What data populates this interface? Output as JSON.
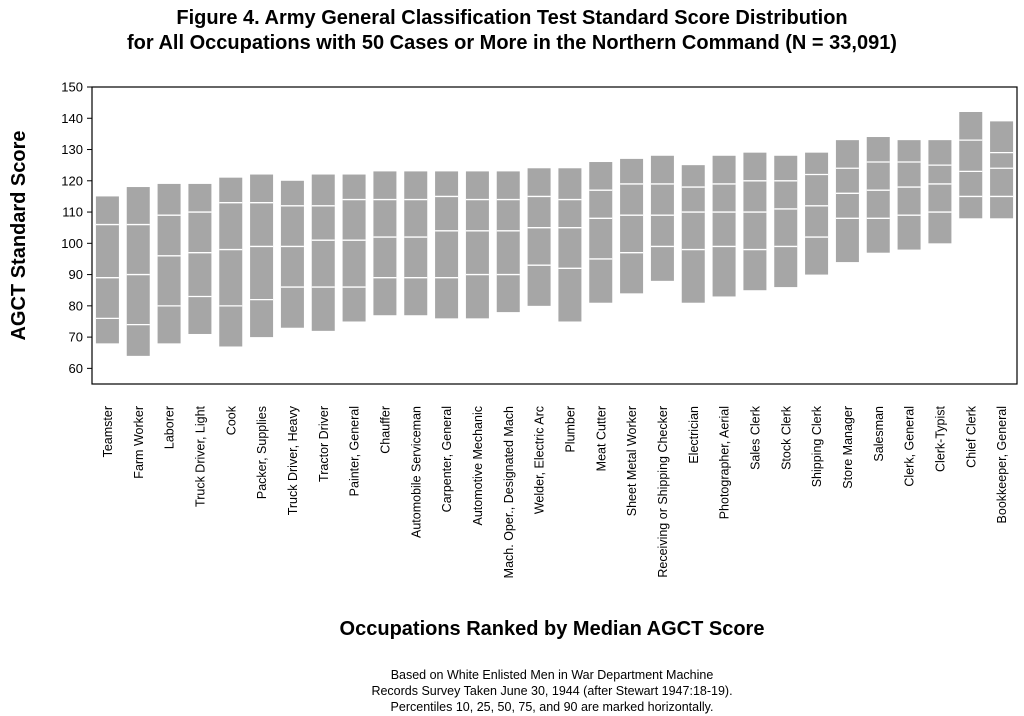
{
  "title_line1": "Figure 4.  Army General Classification Test Standard Score Distribution",
  "title_line2": "for All Occupations with 50 Cases or More in the Northern Command (N = 33,091)",
  "footnote_lines": [
    "Based on White Enlisted Men in War Department Machine",
    "Records Survey Taken June 30, 1944 (after Stewart 1947:18-19).",
    "Percentiles 10, 25, 50, 75, and 90 are marked horizontally."
  ],
  "colors": {
    "box": "#a6a6a6",
    "percentile_line": "#ffffff",
    "axis": "#000000"
  },
  "chart_data": {
    "type": "box",
    "title": "Figure 4.  Army General Classification Test Standard Score Distribution for All Occupations with 50 Cases or More in the Northern Command (N = 33,091)",
    "xlabel": "Occupations Ranked by  Median  AGCT Score",
    "ylabel": "AGCT Standard Score",
    "ylim": [
      55,
      150
    ],
    "yticks": [
      60,
      70,
      80,
      90,
      100,
      110,
      120,
      130,
      140,
      150
    ],
    "percentiles": [
      10,
      25,
      50,
      75,
      90
    ],
    "categories": [
      "Teamster",
      "Farm Worker",
      "Laborer",
      "Truck Driver, Light",
      "Cook",
      "Packer, Supplies",
      "Truck Driver, Heavy",
      "Tractor Driver",
      "Painter, General",
      "Chauffer",
      "Automobile Serviceman",
      "Carpenter, General",
      "Automotive Mechanic",
      "Mach. Oper., Designated Mach",
      "Welder, Electric Arc",
      "Plumber",
      "Meat Cutter",
      "Sheet Metal Worker",
      "Receiving or Shipping Checker",
      "Electrician",
      "Photographer, Aerial",
      "Sales Clerk",
      "Stock Clerk",
      "Shipping Clerk",
      "Store Manager",
      "Salesman",
      "Clerk, General",
      "Clerk-Typist",
      "Chief Clerk",
      "Bookkeeper, General"
    ],
    "values": [
      [
        68,
        76,
        89,
        106,
        115
      ],
      [
        64,
        74,
        90,
        106,
        118
      ],
      [
        68,
        80,
        96,
        109,
        119
      ],
      [
        71,
        83,
        97,
        110,
        119
      ],
      [
        67,
        80,
        98,
        113,
        121
      ],
      [
        70,
        82,
        99,
        113,
        122
      ],
      [
        73,
        86,
        99,
        112,
        120
      ],
      [
        72,
        86,
        101,
        112,
        122
      ],
      [
        75,
        86,
        101,
        114,
        122
      ],
      [
        77,
        89,
        102,
        114,
        123
      ],
      [
        77,
        89,
        102,
        114,
        123
      ],
      [
        76,
        89,
        104,
        115,
        123
      ],
      [
        76,
        90,
        104,
        114,
        123
      ],
      [
        78,
        90,
        104,
        114,
        123
      ],
      [
        80,
        93,
        105,
        115,
        124
      ],
      [
        75,
        92,
        105,
        114,
        124
      ],
      [
        81,
        95,
        108,
        117,
        126
      ],
      [
        84,
        97,
        109,
        119,
        127
      ],
      [
        88,
        99,
        109,
        119,
        128
      ],
      [
        81,
        98,
        110,
        118,
        125
      ],
      [
        83,
        99,
        110,
        119,
        128
      ],
      [
        85,
        98,
        110,
        120,
        129
      ],
      [
        86,
        99,
        111,
        120,
        128
      ],
      [
        90,
        102,
        112,
        122,
        129
      ],
      [
        94,
        108,
        116,
        124,
        133
      ],
      [
        97,
        108,
        117,
        126,
        134
      ],
      [
        98,
        109,
        118,
        126,
        133
      ],
      [
        100,
        110,
        119,
        125,
        133
      ],
      [
        108,
        115,
        123,
        133,
        142
      ],
      [
        108,
        115,
        124,
        129,
        139
      ]
    ],
    "grid": false,
    "legend": "none"
  }
}
